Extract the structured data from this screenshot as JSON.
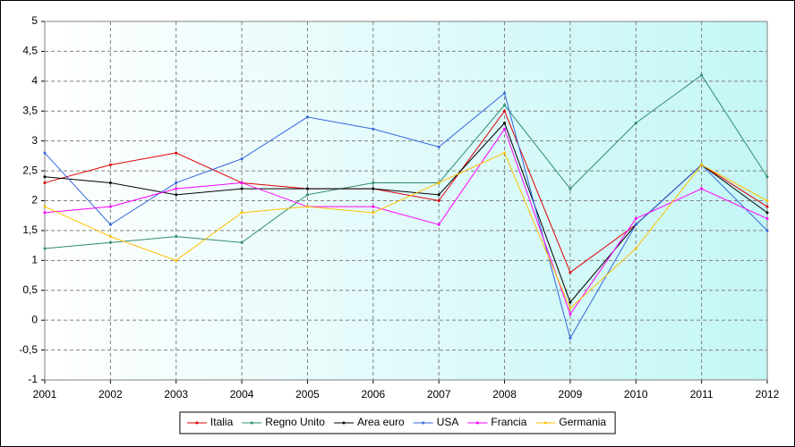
{
  "chart_data": {
    "type": "line",
    "categories": [
      "2001",
      "2002",
      "2003",
      "2004",
      "2005",
      "2006",
      "2007",
      "2008",
      "2009",
      "2010",
      "2011",
      "2012"
    ],
    "ylim": [
      -1,
      5
    ],
    "yticks": [
      -1,
      {
        "value": -0.5,
        "label": "-0,5"
      },
      0,
      {
        "value": 0.5,
        "label": "0,5"
      },
      1,
      {
        "value": 1.5,
        "label": "1,5"
      },
      2,
      {
        "value": 2.5,
        "label": "2,5"
      },
      3,
      {
        "value": 3.5,
        "label": "3,5"
      },
      4,
      {
        "value": 4.5,
        "label": "4,5"
      },
      5
    ],
    "grid": true,
    "legend": "bottom",
    "series": [
      {
        "name": "Italia",
        "color": "#e00000",
        "values": [
          2.3,
          2.6,
          2.8,
          2.3,
          2.2,
          2.2,
          2.0,
          3.5,
          0.8,
          1.6,
          2.6,
          1.9
        ]
      },
      {
        "name": "Regno Unito",
        "color": "#2e8b6e",
        "values": [
          1.2,
          1.3,
          1.4,
          1.3,
          2.1,
          2.3,
          2.3,
          3.6,
          2.2,
          3.3,
          4.1,
          2.4
        ]
      },
      {
        "name": "Area euro",
        "color": "#000000",
        "values": [
          2.4,
          2.3,
          2.1,
          2.2,
          2.2,
          2.2,
          2.1,
          3.3,
          0.3,
          1.6,
          2.6,
          1.8
        ]
      },
      {
        "name": "USA",
        "color": "#3366dd",
        "values": [
          2.8,
          1.6,
          2.3,
          2.7,
          3.4,
          3.2,
          2.9,
          3.8,
          -0.3,
          1.6,
          2.6,
          1.5
        ]
      },
      {
        "name": "Francia",
        "color": "#ff00ff",
        "values": [
          1.8,
          1.9,
          2.2,
          2.3,
          1.9,
          1.9,
          1.6,
          3.2,
          0.1,
          1.7,
          2.2,
          1.7
        ]
      },
      {
        "name": "Germania",
        "color": "#ffc000",
        "values": [
          1.9,
          1.4,
          1.0,
          1.8,
          1.9,
          1.8,
          2.3,
          2.8,
          0.2,
          1.2,
          2.6,
          2.0
        ]
      }
    ]
  }
}
